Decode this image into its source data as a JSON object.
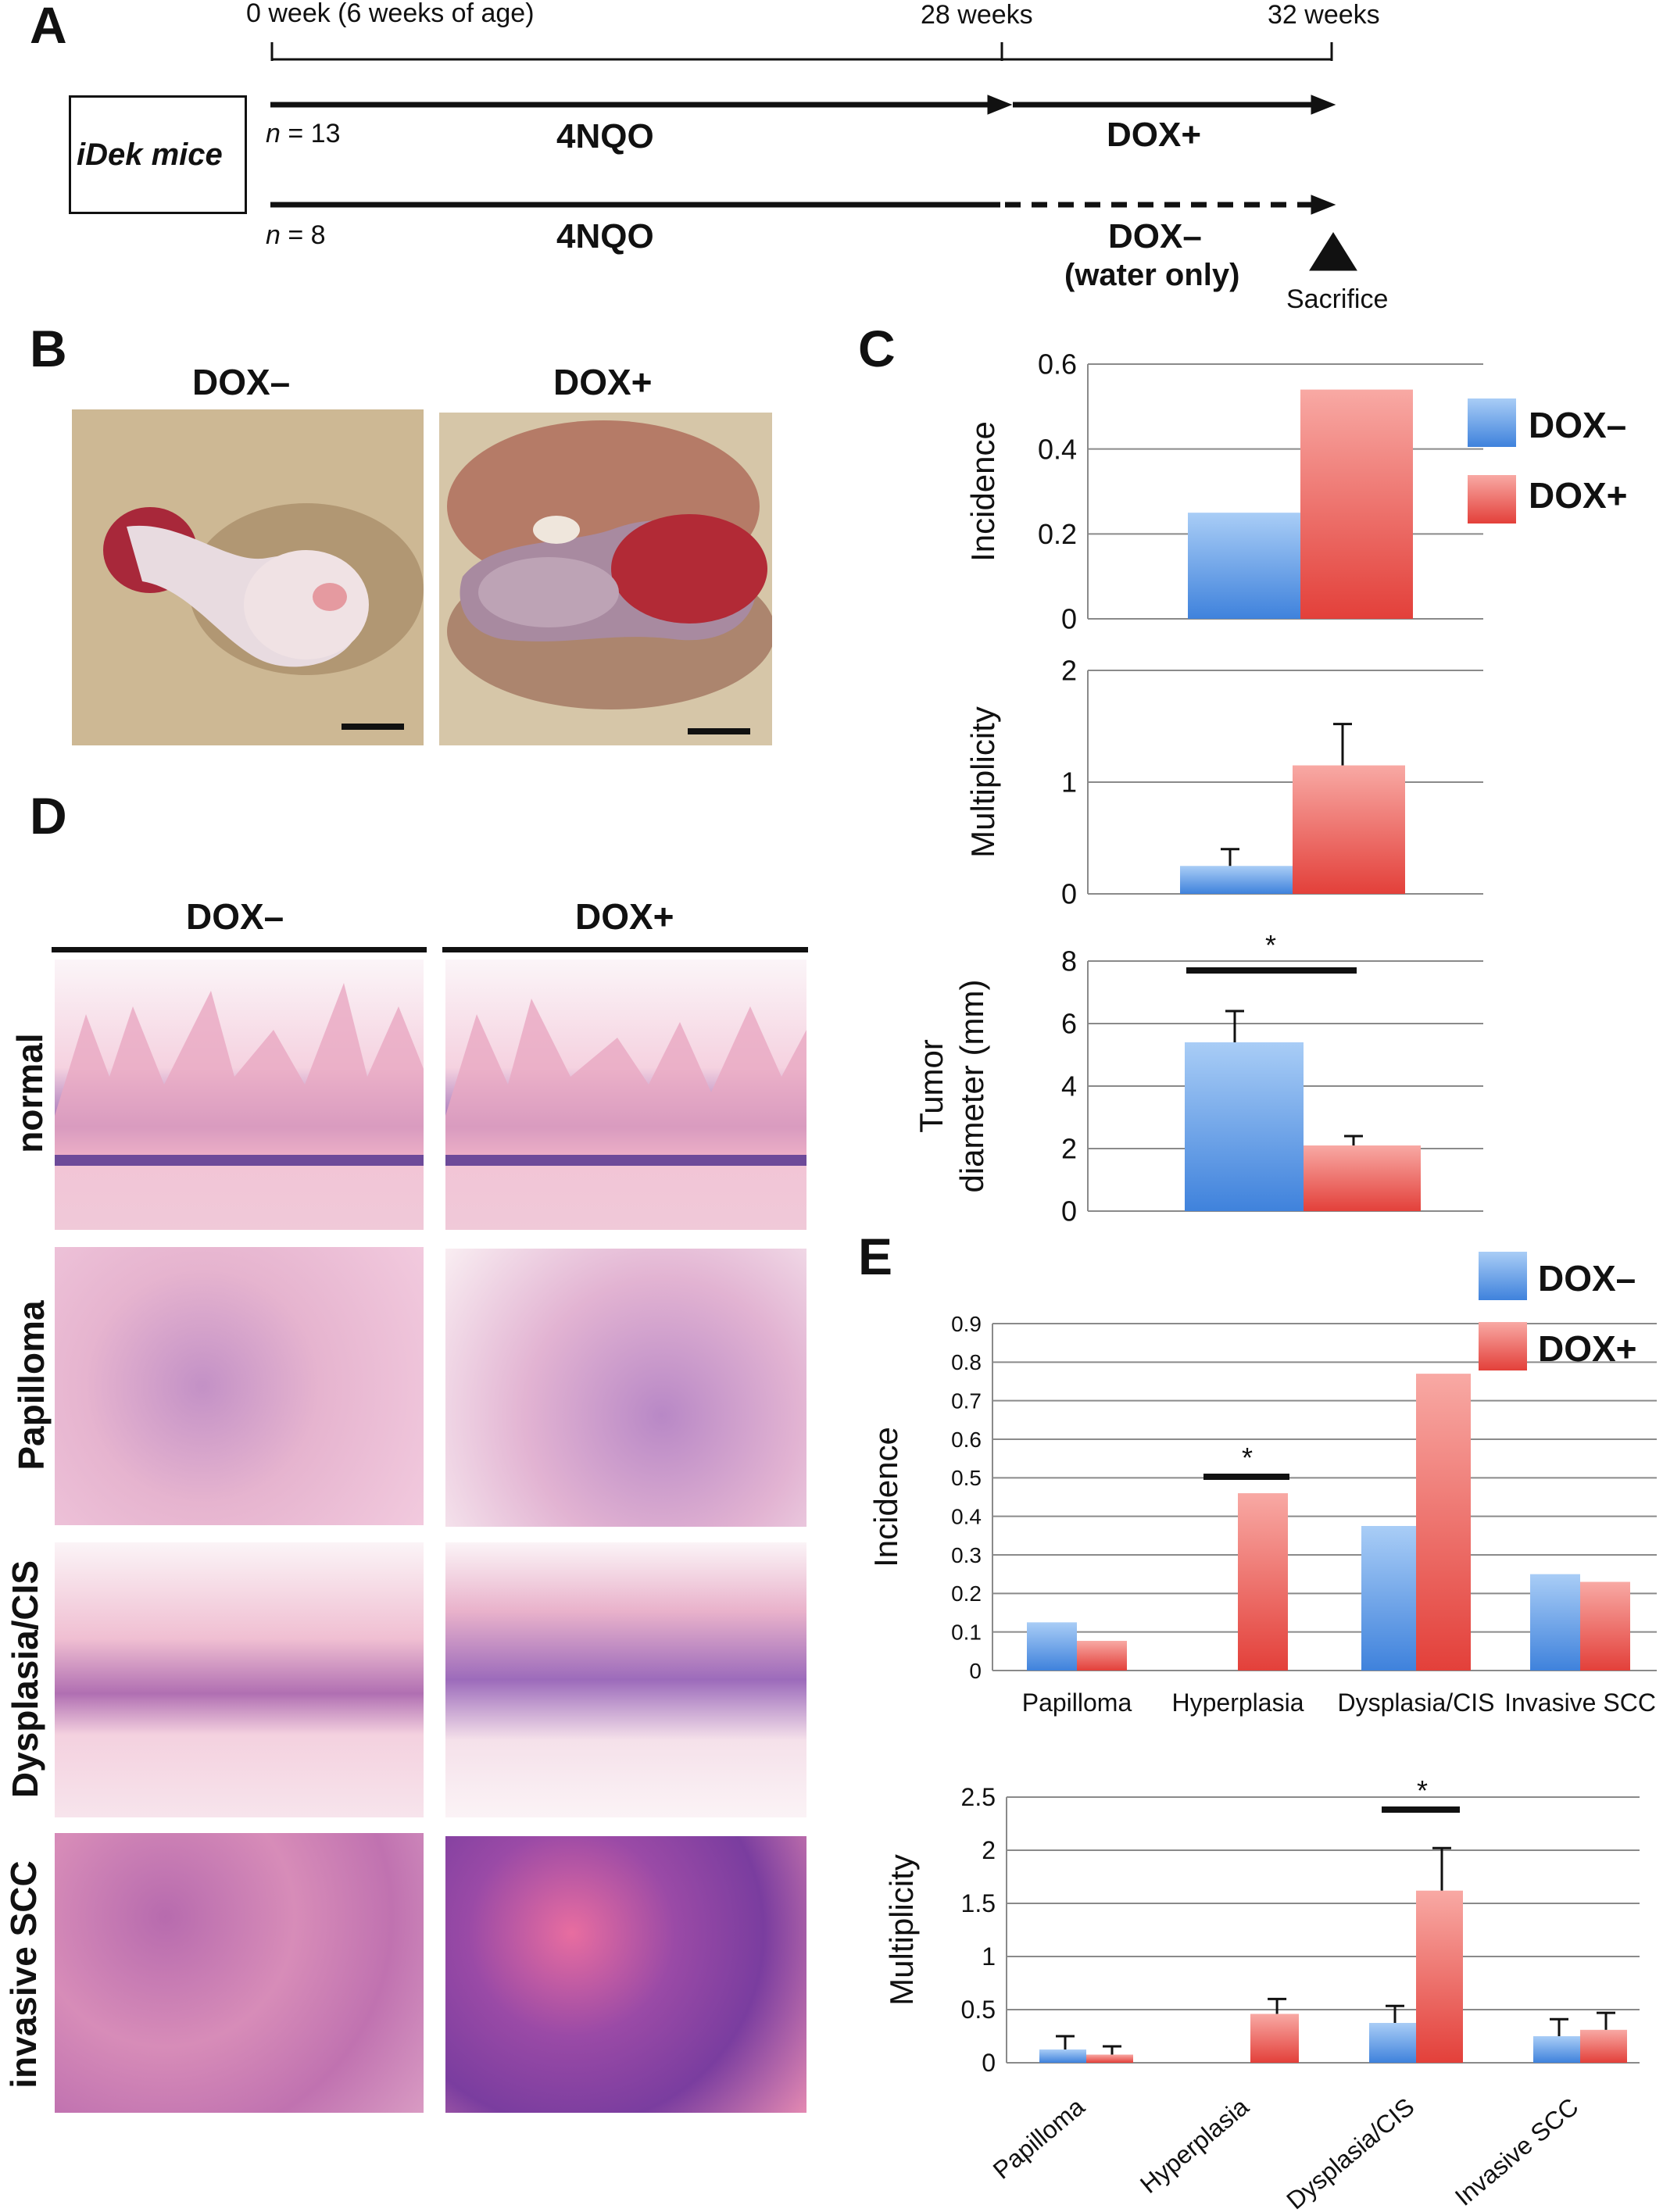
{
  "panels": {
    "a": "A",
    "b": "B",
    "c": "C",
    "d": "D",
    "e": "E"
  },
  "timeline": {
    "t0": "0 week (6 weeks of age)",
    "t28": "28 weeks",
    "t32": "32 weeks",
    "mice": "iDek mice",
    "n1_italic": "n",
    "n1_rest": " = 13",
    "n2_italic": "n",
    "n2_rest": " = 8",
    "treat1": "4NQO",
    "treat2": "4NQO",
    "dox_plus": "DOX+",
    "dox_minus": "DOX–",
    "water": "(water only)",
    "sacrifice": "Sacrifice"
  },
  "panel_b": {
    "left_title": "DOX–",
    "right_title": "DOX+"
  },
  "panel_d": {
    "col1": "DOX–",
    "col2": "DOX+",
    "rows": [
      "normal",
      "Papilloma",
      "Dysplasia/CIS",
      "invasive SCC"
    ]
  },
  "colors": {
    "dox_minus": "#6fa8ec",
    "dox_plus": "#ef7f7a",
    "grid": "#888888"
  },
  "legend_c": {
    "minus": "DOX–",
    "plus": "DOX+"
  },
  "legend_e": {
    "minus": "DOX–",
    "plus": "DOX+"
  },
  "chart_data": [
    {
      "id": "c_incidence",
      "type": "bar",
      "categories": [
        ""
      ],
      "series": [
        {
          "name": "DOX–",
          "values": [
            0.25
          ]
        },
        {
          "name": "DOX+",
          "values": [
            0.54
          ]
        }
      ],
      "ylabel": "Incidence",
      "ylim": [
        0,
        0.6
      ],
      "yticks": [
        "0",
        "0.2",
        "0.4",
        "0.6"
      ],
      "grid": true,
      "legend": "right"
    },
    {
      "id": "c_multiplicity",
      "type": "bar",
      "categories": [
        ""
      ],
      "series": [
        {
          "name": "DOX–",
          "values": [
            0.25
          ],
          "errors": [
            0.15
          ]
        },
        {
          "name": "DOX+",
          "values": [
            1.15
          ],
          "errors": [
            0.37
          ]
        }
      ],
      "ylabel": "Multiplicity",
      "ylim": [
        0,
        2
      ],
      "yticks": [
        "0",
        "1",
        "2"
      ],
      "grid": true
    },
    {
      "id": "c_diameter",
      "type": "bar",
      "categories": [
        ""
      ],
      "series": [
        {
          "name": "DOX–",
          "values": [
            5.4
          ],
          "errors": [
            1.0
          ]
        },
        {
          "name": "DOX+",
          "values": [
            2.1
          ],
          "errors": [
            0.3
          ]
        }
      ],
      "ylabel": "Tumor diameter (mm)",
      "ylabel_lines": [
        "Tumor",
        "diameter (mm)"
      ],
      "ylim": [
        0,
        8
      ],
      "yticks": [
        "0",
        "2",
        "4",
        "6",
        "8"
      ],
      "grid": true,
      "annotation": "*"
    },
    {
      "id": "e_incidence",
      "type": "bar",
      "categories": [
        "Papilloma",
        "Hyperplasia",
        "Dysplasia/CIS",
        "Invasive SCC"
      ],
      "series": [
        {
          "name": "DOX–",
          "values": [
            0.125,
            0,
            0.375,
            0.25
          ]
        },
        {
          "name": "DOX+",
          "values": [
            0.077,
            0.46,
            0.77,
            0.23
          ]
        }
      ],
      "ylabel": "Incidence",
      "ylim": [
        0,
        0.9
      ],
      "yticks": [
        "0",
        "0.1",
        "0.2",
        "0.3",
        "0.4",
        "0.5",
        "0.6",
        "0.7",
        "0.8",
        "0.9"
      ],
      "grid": true,
      "legend": "top-right",
      "annotation": "*"
    },
    {
      "id": "e_multiplicity",
      "type": "bar",
      "categories": [
        "Papilloma",
        "Hyperplasia",
        "Dysplasia/CIS",
        "Invasive SCC"
      ],
      "series": [
        {
          "name": "DOX–",
          "values": [
            0.125,
            0,
            0.375,
            0.25
          ],
          "errors": [
            0.125,
            0,
            0.16,
            0.16
          ]
        },
        {
          "name": "DOX+",
          "values": [
            0.077,
            0.46,
            1.62,
            0.31
          ],
          "errors": [
            0.077,
            0.14,
            0.4,
            0.16
          ]
        }
      ],
      "ylabel": "Multiplicity",
      "ylim": [
        0,
        2.5
      ],
      "yticks": [
        "0",
        "0.5",
        "1",
        "1.5",
        "2",
        "2.5"
      ],
      "grid": true,
      "annotation": "*"
    }
  ]
}
